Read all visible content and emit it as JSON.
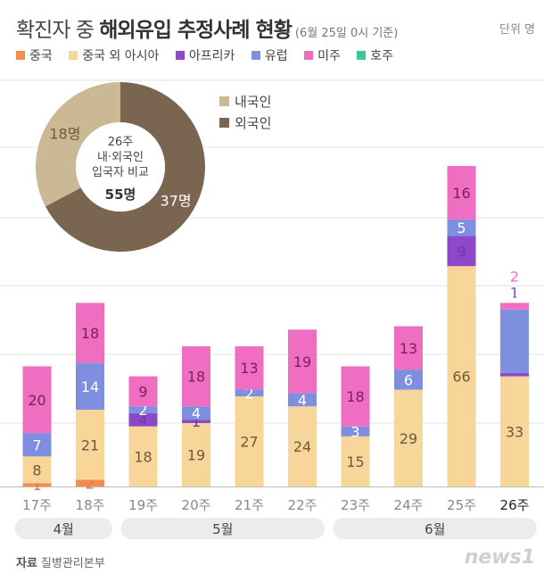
{
  "header": {
    "title_light": "확진자 중 ",
    "title_bold": "해외유입 추정사례 현황",
    "title_note": "(6월 25일 0시 기준)",
    "unit": "단위 명"
  },
  "colors": {
    "중국": "#f28d4f",
    "중국 외 아시아": "#f8d699",
    "아프리카": "#8d48c8",
    "유럽": "#7e8fe0",
    "미주": "#ef6ec2",
    "호주": "#3bc99a",
    "내국인": "#cbb894",
    "외국인": "#7a6550",
    "months_pill": "#ececec",
    "gridline": "#e3e3e3"
  },
  "legend": [
    "중국",
    "중국 외 아시아",
    "아프리카",
    "유럽",
    "미주",
    "호주"
  ],
  "chart_data": [
    {
      "type": "bar",
      "stacked": true,
      "categories": [
        "17주",
        "18주",
        "19주",
        "20주",
        "21주",
        "22주",
        "23주",
        "24주",
        "25주",
        "26주"
      ],
      "series": [
        {
          "name": "중국",
          "values": [
            1,
            2,
            0,
            0,
            0,
            0,
            0,
            0,
            0,
            0
          ]
        },
        {
          "name": "중국 외 아시아",
          "values": [
            8,
            21,
            18,
            19,
            27,
            24,
            15,
            29,
            66,
            33
          ]
        },
        {
          "name": "아프리카",
          "values": [
            0,
            0,
            4,
            1,
            0,
            0,
            0,
            0,
            9,
            1
          ]
        },
        {
          "name": "유럽",
          "values": [
            7,
            14,
            2,
            4,
            2,
            4,
            3,
            6,
            5,
            19
          ]
        },
        {
          "name": "미주",
          "values": [
            20,
            18,
            9,
            18,
            13,
            19,
            18,
            13,
            16,
            2
          ]
        },
        {
          "name": "호주",
          "values": [
            0,
            0,
            0,
            0,
            0,
            0,
            0,
            0,
            0,
            0
          ]
        }
      ],
      "months": [
        {
          "label": "4월",
          "from": 0,
          "to": 1
        },
        {
          "label": "5월",
          "from": 2,
          "to": 5
        },
        {
          "label": "6월",
          "from": 6,
          "to": 9
        }
      ]
    },
    {
      "type": "pie",
      "donut": true,
      "center_lines": [
        "26주",
        "내·외국인",
        "입국자 비교"
      ],
      "center_total": "55명",
      "slices": [
        {
          "name": "내국인",
          "value": 18,
          "label": "18명"
        },
        {
          "name": "외국인",
          "value": 37,
          "label": "37명"
        }
      ]
    }
  ],
  "footer": {
    "source_label": "자료",
    "source": "질병관리본부",
    "logo": "news1"
  }
}
